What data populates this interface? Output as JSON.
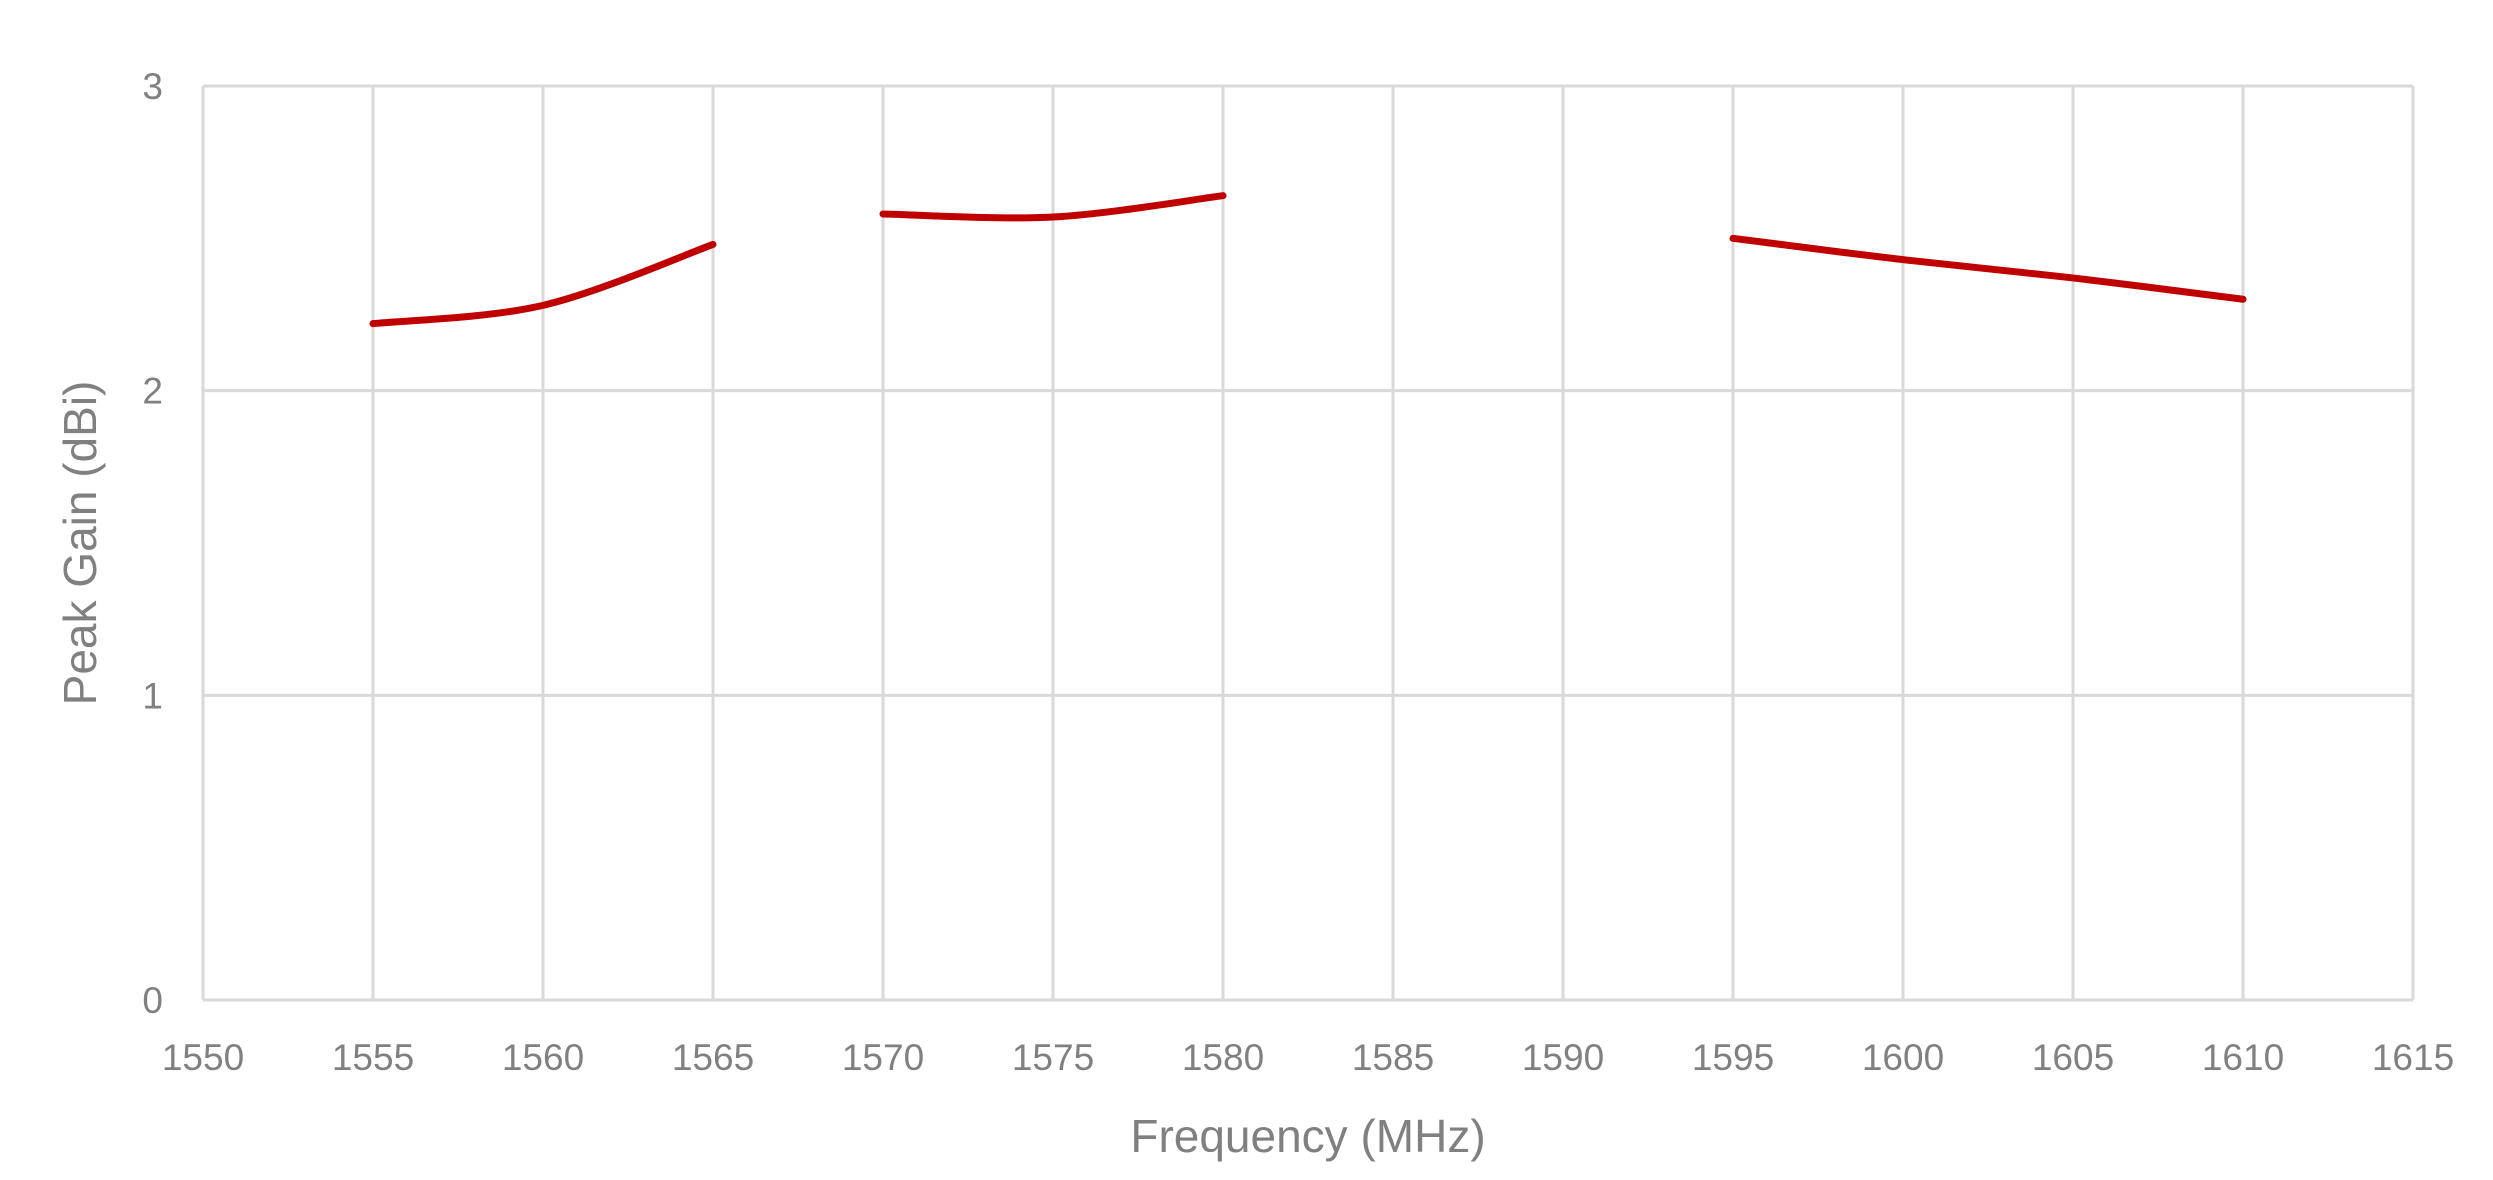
{
  "colors": {
    "series": "#c00000",
    "grid": "#d9d9d9",
    "text": "#808080",
    "background": "#ffffff"
  },
  "chart_data": {
    "type": "line",
    "title": "",
    "xlabel": "Frequency (MHz)",
    "ylabel": "Peak Gain (dBi)",
    "xlim": [
      1550,
      1615
    ],
    "ylim": [
      0,
      3
    ],
    "x_ticks": [
      1550,
      1555,
      1560,
      1565,
      1570,
      1575,
      1580,
      1585,
      1590,
      1595,
      1600,
      1605,
      1610,
      1615
    ],
    "y_ticks": [
      0,
      1,
      2,
      3
    ],
    "grid": true,
    "legend": "none",
    "series": [
      {
        "color": "#c00000",
        "points": [
          [
            1555,
            2.22
          ],
          [
            1560,
            2.28
          ],
          [
            1565,
            2.48
          ],
          [
            1570,
            null
          ],
          [
            1570,
            2.58
          ],
          [
            1575,
            2.57
          ],
          [
            1580,
            2.64
          ],
          [
            1585,
            null
          ],
          [
            1590,
            null
          ],
          [
            1595,
            2.5
          ],
          [
            1600,
            2.43
          ],
          [
            1605,
            2.37
          ],
          [
            1610,
            2.3
          ]
        ]
      }
    ]
  }
}
